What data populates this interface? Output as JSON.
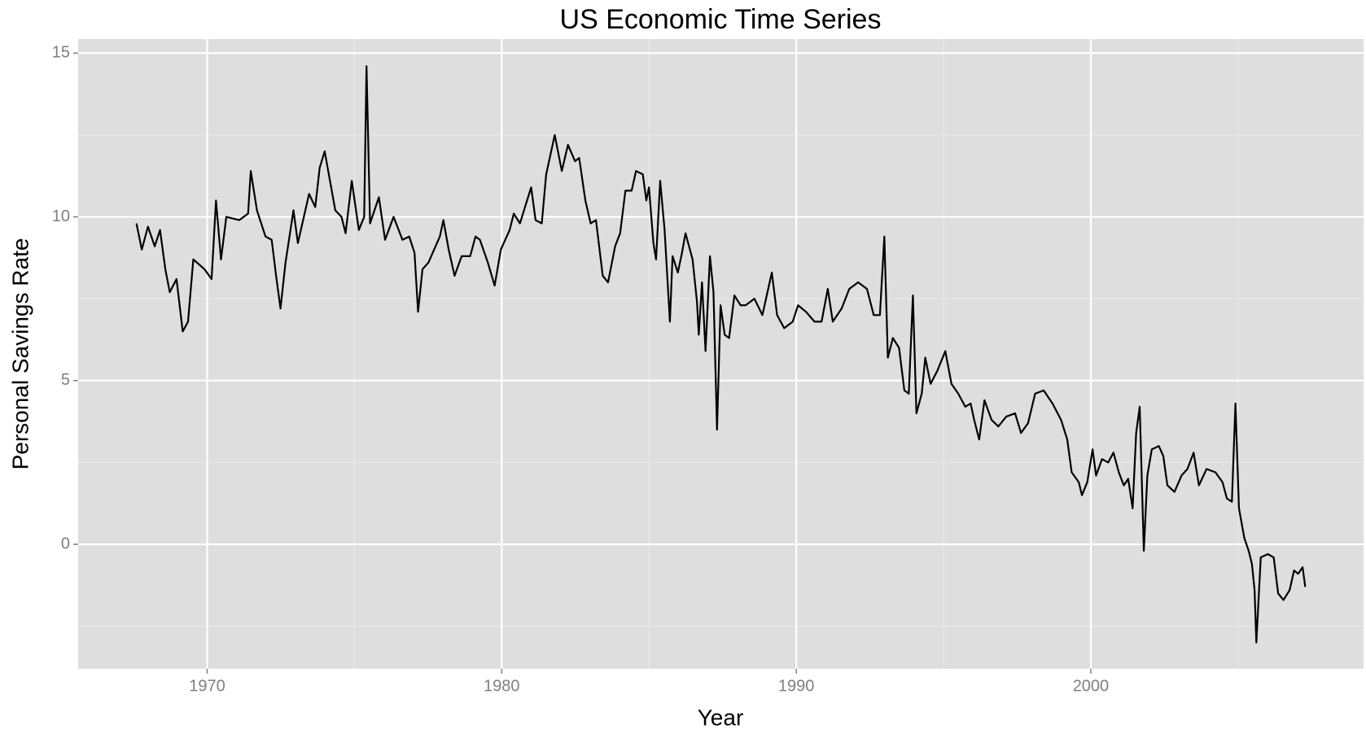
{
  "chart_data": {
    "type": "line",
    "title": "US Economic Time Series",
    "x_label": "Year",
    "y_label": "Personal Savings Rate",
    "color": "#000000",
    "grid": true,
    "background": "#dedede",
    "xlim": [
      1965.62,
      2009.26
    ],
    "ylim": [
      -3.8,
      15.43
    ],
    "xticks": [
      1970,
      1980,
      1990,
      2000
    ],
    "yticks": [
      0,
      5,
      10,
      15
    ],
    "x": [
      1967.6,
      1967.78,
      1967.99,
      1968.22,
      1968.4,
      1968.58,
      1968.73,
      1968.96,
      1969.17,
      1969.35,
      1969.53,
      1969.91,
      1970.15,
      1970.3,
      1970.47,
      1970.65,
      1971.09,
      1971.39,
      1971.48,
      1971.69,
      1971.98,
      1972.19,
      1972.34,
      1972.49,
      1972.66,
      1972.93,
      1973.08,
      1973.46,
      1973.67,
      1973.82,
      1973.99,
      1974.35,
      1974.56,
      1974.7,
      1974.91,
      1975.15,
      1975.33,
      1975.41,
      1975.53,
      1975.83,
      1976.04,
      1976.33,
      1976.63,
      1976.86,
      1977.04,
      1977.16,
      1977.31,
      1977.51,
      1977.9,
      1978.02,
      1978.2,
      1978.4,
      1978.64,
      1978.93,
      1979.11,
      1979.26,
      1979.53,
      1979.76,
      1979.97,
      1980.27,
      1980.41,
      1980.62,
      1980.86,
      1981.0,
      1981.15,
      1981.36,
      1981.51,
      1981.8,
      1982.04,
      1982.25,
      1982.49,
      1982.63,
      1982.84,
      1983.02,
      1983.2,
      1983.43,
      1983.61,
      1983.85,
      1984.02,
      1984.2,
      1984.41,
      1984.56,
      1984.79,
      1984.91,
      1985.0,
      1985.15,
      1985.24,
      1985.38,
      1985.53,
      1985.71,
      1985.8,
      1985.98,
      1986.12,
      1986.24,
      1986.48,
      1986.63,
      1986.69,
      1986.8,
      1986.92,
      1987.07,
      1987.19,
      1987.31,
      1987.43,
      1987.57,
      1987.72,
      1987.9,
      1988.11,
      1988.28,
      1988.58,
      1988.85,
      1989.17,
      1989.35,
      1989.59,
      1989.88,
      1990.06,
      1990.33,
      1990.62,
      1990.86,
      1991.07,
      1991.24,
      1991.54,
      1991.8,
      1992.1,
      1992.4,
      1992.63,
      1992.84,
      1992.99,
      1993.11,
      1993.28,
      1993.49,
      1993.67,
      1993.82,
      1993.96,
      1994.08,
      1994.26,
      1994.38,
      1994.56,
      1994.79,
      1995.06,
      1995.27,
      1995.5,
      1995.74,
      1995.92,
      1996.04,
      1996.21,
      1996.39,
      1996.63,
      1996.86,
      1997.13,
      1997.43,
      1997.63,
      1997.87,
      1998.11,
      1998.4,
      1998.7,
      1998.99,
      1999.2,
      1999.35,
      1999.59,
      1999.7,
      1999.88,
      2000.06,
      2000.18,
      2000.38,
      2000.59,
      2000.77,
      2000.95,
      2001.12,
      2001.27,
      2001.42,
      2001.54,
      2001.66,
      2001.8,
      2001.92,
      2002.07,
      2002.31,
      2002.46,
      2002.6,
      2002.84,
      2003.08,
      2003.28,
      2003.49,
      2003.67,
      2003.93,
      2004.23,
      2004.47,
      2004.62,
      2004.79,
      2004.91,
      2005.03,
      2005.21,
      2005.36,
      2005.47,
      2005.56,
      2005.62,
      2005.77,
      2006.01,
      2006.21,
      2006.36,
      2006.54,
      2006.75,
      2006.9,
      2007.04,
      2007.19,
      2007.28
    ],
    "values": [
      9.8,
      9.0,
      9.7,
      9.1,
      9.6,
      8.4,
      7.7,
      8.1,
      6.5,
      6.8,
      8.7,
      8.4,
      8.1,
      10.5,
      8.7,
      10.0,
      9.9,
      10.1,
      11.4,
      10.2,
      9.4,
      9.3,
      8.2,
      7.2,
      8.6,
      10.2,
      9.2,
      10.7,
      10.3,
      11.5,
      12.0,
      10.2,
      10.0,
      9.5,
      11.1,
      9.6,
      10.0,
      14.6,
      9.8,
      10.6,
      9.3,
      10.0,
      9.3,
      9.4,
      8.9,
      7.1,
      8.4,
      8.6,
      9.4,
      9.9,
      9.0,
      8.2,
      8.8,
      8.8,
      9.4,
      9.3,
      8.6,
      7.9,
      9.0,
      9.6,
      10.1,
      9.8,
      10.5,
      10.9,
      9.9,
      9.8,
      11.3,
      12.5,
      11.4,
      12.2,
      11.7,
      11.8,
      10.5,
      9.8,
      9.9,
      8.2,
      8.0,
      9.1,
      9.5,
      10.8,
      10.8,
      11.4,
      11.3,
      10.5,
      10.9,
      9.2,
      8.7,
      11.1,
      9.6,
      6.8,
      8.8,
      8.3,
      8.9,
      9.5,
      8.7,
      7.4,
      6.4,
      8.0,
      5.9,
      8.8,
      7.7,
      3.5,
      7.3,
      6.4,
      6.3,
      7.6,
      7.3,
      7.3,
      7.5,
      7.0,
      8.3,
      7.0,
      6.6,
      6.8,
      7.3,
      7.1,
      6.8,
      6.8,
      7.8,
      6.8,
      7.2,
      7.8,
      8.0,
      7.8,
      7.0,
      7.0,
      9.4,
      5.7,
      6.3,
      6.0,
      4.7,
      4.6,
      7.6,
      4.0,
      4.6,
      5.7,
      4.9,
      5.3,
      5.9,
      4.9,
      4.6,
      4.2,
      4.3,
      3.8,
      3.2,
      4.4,
      3.8,
      3.6,
      3.9,
      4.0,
      3.4,
      3.7,
      4.6,
      4.7,
      4.3,
      3.8,
      3.2,
      2.2,
      1.9,
      1.5,
      1.9,
      2.9,
      2.1,
      2.6,
      2.5,
      2.8,
      2.2,
      1.8,
      2.0,
      1.1,
      3.4,
      4.2,
      -0.2,
      2.1,
      2.9,
      3.0,
      2.7,
      1.8,
      1.6,
      2.1,
      2.3,
      2.8,
      1.8,
      2.3,
      2.2,
      1.9,
      1.4,
      1.3,
      4.3,
      1.1,
      0.2,
      -0.2,
      -0.6,
      -1.4,
      -3.0,
      -0.4,
      -0.3,
      -0.4,
      -1.5,
      -1.7,
      -1.4,
      -0.8,
      -0.9,
      -0.7,
      -1.3
    ]
  }
}
